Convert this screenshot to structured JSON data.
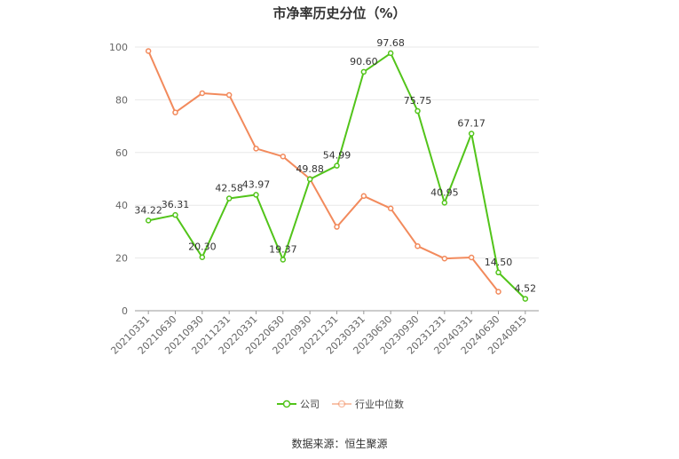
{
  "chart_data": {
    "type": "line",
    "title": "市净率历史分位（%）",
    "categories": [
      "20210331",
      "20210630",
      "20210930",
      "20211231",
      "20220331",
      "20220630",
      "20220930",
      "20221231",
      "20230331",
      "20230630",
      "20230930",
      "20231231",
      "20240331",
      "20240630",
      "20240815"
    ],
    "ylim": [
      0,
      100
    ],
    "yticks": [
      "0",
      "20",
      "40",
      "60",
      "80",
      "100"
    ],
    "grid": true,
    "legend_placement": "bottom",
    "series": [
      {
        "name": "公司",
        "color": "#52c41a",
        "values": [
          34.22,
          36.31,
          20.3,
          42.58,
          43.97,
          19.37,
          49.88,
          54.99,
          90.6,
          97.68,
          75.75,
          40.95,
          67.17,
          14.5,
          4.52
        ],
        "labels": [
          "34.22",
          "36.31",
          "20.30",
          "42.58",
          "43.97",
          "19.37",
          "49.88",
          "54.99",
          "90.60",
          "97.68",
          "75.75",
          "40.95",
          "67.17",
          "14.50",
          "4.52"
        ]
      },
      {
        "name": "行业中位数",
        "color": "#f28a5c",
        "values": [
          98.5,
          75.2,
          82.5,
          81.8,
          61.5,
          58.5,
          50.0,
          31.8,
          43.5,
          38.8,
          24.5,
          19.8,
          20.2,
          7.2,
          null
        ]
      }
    ]
  },
  "source_text": "数据来源：恒生聚源"
}
